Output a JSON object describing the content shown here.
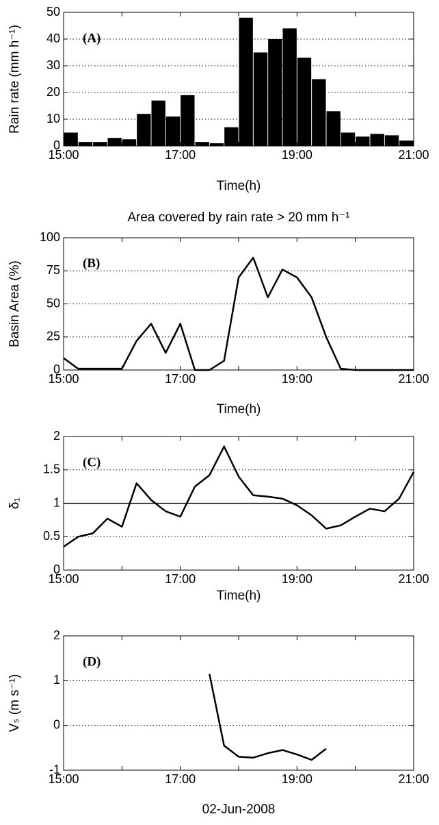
{
  "chart_data": [
    {
      "type": "bar",
      "panel_label": "(A)",
      "ylabel": "Rain rate (mm h⁻¹)",
      "xlabel": "Time(h)",
      "color": "#000000",
      "grid": true,
      "x": [
        15,
        15.25,
        15.5,
        15.75,
        16,
        16.25,
        16.5,
        16.75,
        17,
        17.25,
        17.5,
        17.75,
        18,
        18.25,
        18.5,
        18.75,
        19,
        19.25,
        19.5,
        19.75,
        20,
        20.25,
        20.5,
        20.75
      ],
      "values": [
        5,
        1.5,
        1.5,
        3,
        2.5,
        12,
        17,
        11,
        19,
        1.5,
        1,
        7,
        48,
        35,
        40,
        44,
        33,
        25,
        13,
        5,
        3.5,
        4.5,
        4,
        2
      ],
      "xlim": [
        15,
        21
      ],
      "ylim": [
        0,
        50
      ],
      "yticks": [
        0,
        10,
        20,
        30,
        40,
        50
      ],
      "xticks": [
        {
          "value": 15,
          "label": "15:00"
        },
        {
          "value": 17,
          "label": "17:00"
        },
        {
          "value": 19,
          "label": "19:00"
        },
        {
          "value": 21,
          "label": "21:00"
        }
      ],
      "xminorticks": [
        16,
        18,
        20
      ]
    },
    {
      "type": "line",
      "title": "Area covered by rain rate > 20 mm h⁻¹",
      "panel_label": "(B)",
      "ylabel": "Basin Area (%)",
      "xlabel": "Time(h)",
      "color": "#000000",
      "grid": true,
      "x": [
        15,
        15.25,
        15.5,
        15.75,
        16,
        16.25,
        16.5,
        16.75,
        17,
        17.25,
        17.5,
        17.75,
        18,
        18.25,
        18.5,
        18.75,
        19,
        19.25,
        19.5,
        19.75,
        20,
        20.25,
        20.5,
        20.75,
        21
      ],
      "values": [
        9,
        1,
        1,
        1,
        1,
        22,
        35,
        13,
        35,
        0,
        0,
        7,
        70,
        85,
        55,
        76,
        70,
        55,
        25,
        1,
        0,
        0,
        0,
        0,
        0
      ],
      "xlim": [
        15,
        21
      ],
      "ylim": [
        0,
        100
      ],
      "yticks": [
        0,
        25,
        50,
        75,
        100
      ],
      "xticks": [
        {
          "value": 15,
          "label": "15:00"
        },
        {
          "value": 17,
          "label": "17:00"
        },
        {
          "value": 19,
          "label": "19:00"
        },
        {
          "value": 21,
          "label": "21:00"
        }
      ],
      "xminorticks": [
        16,
        18,
        20
      ]
    },
    {
      "type": "line",
      "panel_label": "(C)",
      "ylabel": "δ₁",
      "xlabel": "Time(h)",
      "color": "#000000",
      "grid": true,
      "reference_line": 1,
      "x": [
        15,
        15.25,
        15.5,
        15.75,
        16,
        16.25,
        16.5,
        16.75,
        17,
        17.25,
        17.5,
        17.75,
        18,
        18.25,
        18.5,
        18.75,
        19,
        19.25,
        19.5,
        19.75,
        20,
        20.25,
        20.5,
        20.75,
        21
      ],
      "values": [
        0.35,
        0.5,
        0.55,
        0.77,
        0.65,
        1.3,
        1.05,
        0.88,
        0.8,
        1.25,
        1.42,
        1.85,
        1.4,
        1.12,
        1.1,
        1.07,
        0.97,
        0.82,
        0.62,
        0.67,
        0.8,
        0.92,
        0.88,
        1.07,
        1.47
      ],
      "xlim": [
        15,
        21
      ],
      "ylim": [
        0,
        2
      ],
      "yticks": [
        0,
        0.5,
        1,
        1.5,
        2
      ],
      "xticks": [
        {
          "value": 15,
          "label": "15:00"
        },
        {
          "value": 17,
          "label": "17:00"
        },
        {
          "value": 19,
          "label": "19:00"
        },
        {
          "value": 21,
          "label": "21:00"
        }
      ],
      "xminorticks": [
        16,
        18,
        20
      ]
    },
    {
      "type": "line",
      "panel_label": "(D)",
      "ylabel": "Vₛ (m s⁻¹)",
      "xlabel": "02-Jun-2008",
      "color": "#000000",
      "grid": true,
      "x": [
        17.5,
        17.75,
        18,
        18.25,
        18.5,
        18.75,
        19,
        19.25,
        19.5
      ],
      "values": [
        1.15,
        -0.45,
        -0.7,
        -0.72,
        -0.62,
        -0.55,
        -0.65,
        -0.77,
        -0.52
      ],
      "xlim": [
        15,
        21
      ],
      "ylim": [
        -1,
        2
      ],
      "yticks": [
        -1,
        0,
        1,
        2
      ],
      "xticks": [
        {
          "value": 15,
          "label": "15:00"
        },
        {
          "value": 17,
          "label": "17:00"
        },
        {
          "value": 19,
          "label": "19:00"
        },
        {
          "value": 21,
          "label": "21:00"
        }
      ],
      "xminorticks": [
        16,
        18,
        20
      ]
    }
  ]
}
